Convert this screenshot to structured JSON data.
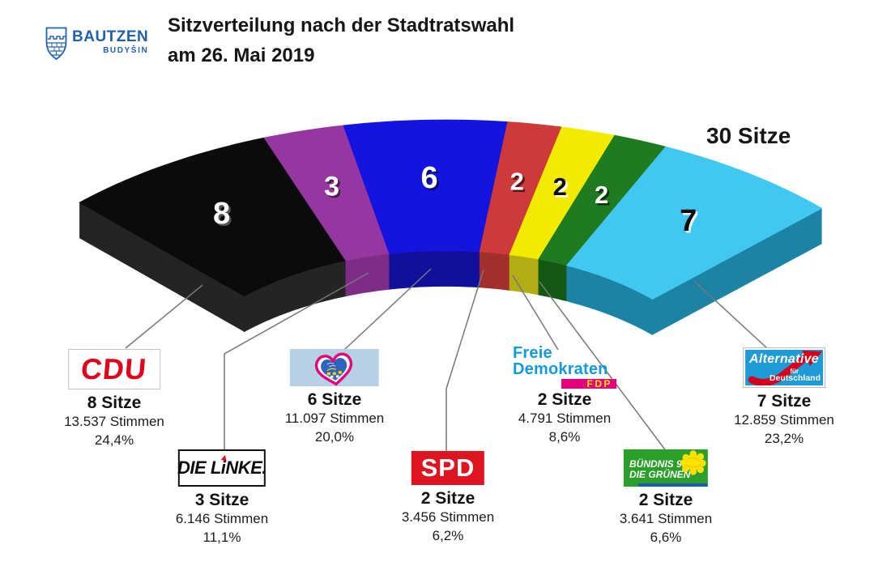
{
  "header": {
    "logo": {
      "city": "BAUTZEN",
      "city_sorbian": "BUDYŠIN"
    },
    "title_line1": "Sitzverteilung nach der Stadtratswahl",
    "title_line2": "am 26. Mai 2019"
  },
  "total_label": "30 Sitze",
  "chart_data": {
    "type": "pie",
    "variant": "half-donut seat-distribution arc (3D)",
    "title": "Sitzverteilung nach der Stadtratswahl am 26. Mai 2019",
    "total_seats": 30,
    "total_label": "30 Sitze",
    "legend_position": "callout labels below arc",
    "series": [
      {
        "name": "CDU",
        "seats": 8,
        "votes": 13537,
        "percent": 24.4,
        "color": "#0b0b0b"
      },
      {
        "name": "DIE LINKE.",
        "seats": 3,
        "votes": 6146,
        "percent": 11.1,
        "color": "#9636a0"
      },
      {
        "name": "Bürgerbündnis Bautzen",
        "seats": 6,
        "votes": 11097,
        "percent": 20.0,
        "color": "#1414e0"
      },
      {
        "name": "SPD",
        "seats": 2,
        "votes": 3456,
        "percent": 6.2,
        "color": "#ce3a3a"
      },
      {
        "name": "Freie Demokraten FDP",
        "seats": 2,
        "votes": 4791,
        "percent": 8.6,
        "color": "#f2eb00"
      },
      {
        "name": "Bündnis 90/Die Grünen",
        "seats": 2,
        "votes": 3641,
        "percent": 6.6,
        "color": "#1f7b1f"
      },
      {
        "name": "Alternative für Deutschland",
        "seats": 7,
        "votes": 12859,
        "percent": 23.2,
        "color": "#41c8f0"
      }
    ]
  },
  "parties": [
    {
      "id": "cdu",
      "name": "CDU",
      "seats": 8,
      "num": "8",
      "seats_text": "8 Sitze",
      "votes_text": "13.537 Stimmen",
      "percent_text": "24,4%",
      "colors": {
        "top": "#0b0b0b",
        "wall": "#242424",
        "num": "#ffffff",
        "num_shadow": "#555555"
      },
      "logo_text": "CDU"
    },
    {
      "id": "linke",
      "name": "DIE LINKE.",
      "seats": 3,
      "num": "3",
      "seats_text": "3 Sitze",
      "votes_text": "6.146 Stimmen",
      "percent_text": "11,1%",
      "colors": {
        "top": "#9636a0",
        "wall": "#7d2d86",
        "num": "#ffffff",
        "num_shadow": "#4a1a50"
      },
      "logo_parts": [
        "DIE L",
        "i",
        "NKE."
      ]
    },
    {
      "id": "bb",
      "name": "Bürgerbündnis Bautzen",
      "seats": 6,
      "num": "6",
      "seats_text": "6 Sitze",
      "votes_text": "11.097 Stimmen",
      "percent_text": "20,0%",
      "colors": {
        "top": "#1414e0",
        "wall": "#10109c",
        "num": "#ffffff",
        "num_shadow": "#0a0a60"
      },
      "logo_icon": "buergerbuendnis-heart-logo"
    },
    {
      "id": "spd",
      "name": "SPD",
      "seats": 2,
      "num": "2",
      "seats_text": "2 Sitze",
      "votes_text": "3.456 Stimmen",
      "percent_text": "6,2%",
      "colors": {
        "top": "#ce3a3a",
        "wall": "#a32e2e",
        "num": "#ffffff",
        "num_shadow": "#5d1414"
      },
      "logo_text": "SPD"
    },
    {
      "id": "fdp",
      "name": "Freie Demokraten FDP",
      "seats": 2,
      "num": "2",
      "seats_text": "2 Sitze",
      "votes_text": "4.791 Stimmen",
      "percent_text": "8,6%",
      "colors": {
        "top": "#f2eb00",
        "wall": "#b3ad15",
        "num": "#0d0d0d",
        "num_shadow": "#ffffff"
      },
      "logo_line1": "Freie",
      "logo_line2": "Demokraten",
      "logo_badge": "FDP"
    },
    {
      "id": "gruene",
      "name": "Bündnis 90/Die Grünen",
      "seats": 2,
      "num": "2",
      "seats_text": "2 Sitze",
      "votes_text": "3.641 Stimmen",
      "percent_text": "6,6%",
      "colors": {
        "top": "#1f7b1f",
        "wall": "#135813",
        "num": "#ffffff",
        "num_shadow": "#0a330a"
      },
      "logo_line1": "BÜNDNIS 90",
      "logo_line2": "DIE GRÜNEN"
    },
    {
      "id": "afd",
      "name": "Alternative für Deutschland",
      "seats": 7,
      "num": "7",
      "seats_text": "7 Sitze",
      "votes_text": "12.859 Stimmen",
      "percent_text": "23,2%",
      "colors": {
        "top": "#41c8f0",
        "wall": "#1d83a4",
        "num": "#0d0d0d",
        "num_shadow": "#f2f2f2"
      },
      "logo_line1": "Alternative",
      "logo_sub1": "für",
      "logo_sub2": "Deutschland"
    }
  ]
}
